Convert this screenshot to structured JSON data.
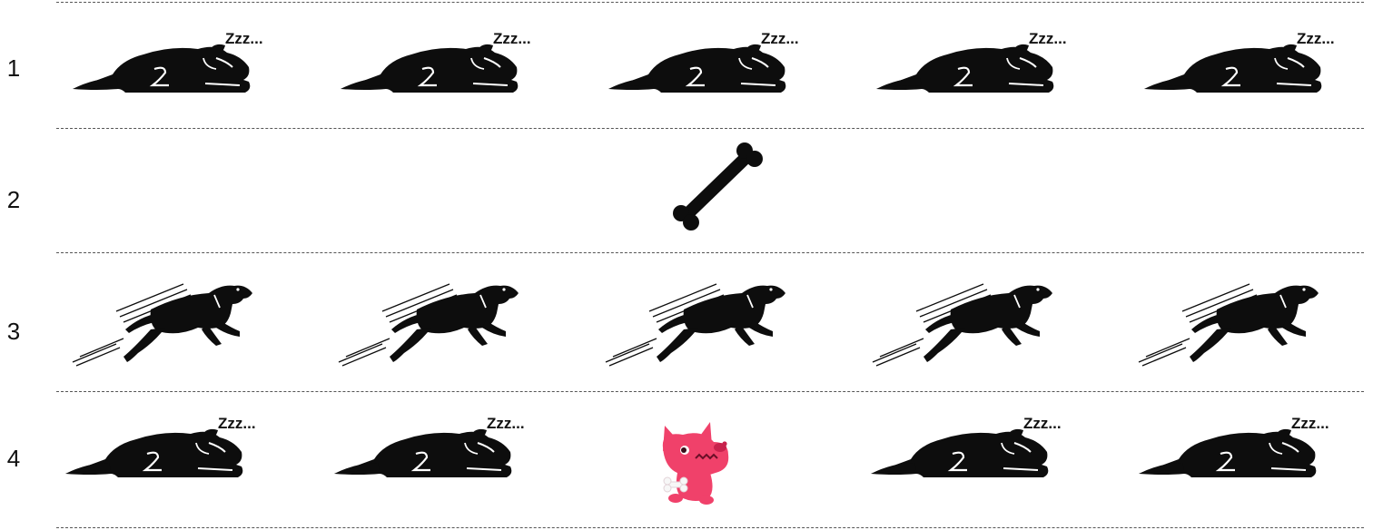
{
  "rows": [
    {
      "label": "1",
      "state": "sleeping"
    },
    {
      "label": "2",
      "state": "bone-thrown"
    },
    {
      "label": "3",
      "state": "running"
    },
    {
      "label": "4",
      "state": "sleeping-except-one"
    }
  ],
  "sleep_text": "Zzz...",
  "icons": {
    "sleeping": "sleeping-dog-icon",
    "running": "running-dog-icon",
    "bone": "bone-icon",
    "awake": "pink-monster-dog-with-bone-icon"
  },
  "colors": {
    "silhouette": "#0d0d0d",
    "awake_dog": "#f0416a",
    "separator": "#555555"
  }
}
